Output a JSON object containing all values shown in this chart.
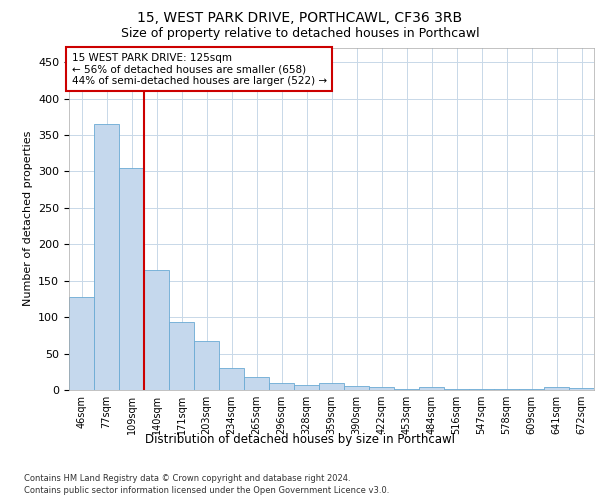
{
  "title_line1": "15, WEST PARK DRIVE, PORTHCAWL, CF36 3RB",
  "title_line2": "Size of property relative to detached houses in Porthcawl",
  "xlabel": "Distribution of detached houses by size in Porthcawl",
  "ylabel": "Number of detached properties",
  "bar_values": [
    128,
    365,
    305,
    165,
    93,
    67,
    30,
    18,
    9,
    7,
    9,
    5,
    4,
    1,
    4,
    1,
    1,
    1,
    1,
    4,
    3
  ],
  "bar_labels": [
    "46sqm",
    "77sqm",
    "109sqm",
    "140sqm",
    "171sqm",
    "203sqm",
    "234sqm",
    "265sqm",
    "296sqm",
    "328sqm",
    "359sqm",
    "390sqm",
    "422sqm",
    "453sqm",
    "484sqm",
    "516sqm",
    "547sqm",
    "578sqm",
    "609sqm",
    "641sqm",
    "672sqm"
  ],
  "bar_color": "#c5d8ed",
  "bar_edge_color": "#6aaad4",
  "vline_x_idx": 2,
  "vline_color": "#cc0000",
  "annotation_line1": "15 WEST PARK DRIVE: 125sqm",
  "annotation_line2": "← 56% of detached houses are smaller (658)",
  "annotation_line3": "44% of semi-detached houses are larger (522) →",
  "ylim": [
    0,
    470
  ],
  "yticks": [
    0,
    50,
    100,
    150,
    200,
    250,
    300,
    350,
    400,
    450
  ],
  "footer_line1": "Contains HM Land Registry data © Crown copyright and database right 2024.",
  "footer_line2": "Contains public sector information licensed under the Open Government Licence v3.0.",
  "background_color": "#ffffff",
  "grid_color": "#c8d8e8",
  "title1_fontsize": 10,
  "title2_fontsize": 9,
  "ylabel_fontsize": 8,
  "xlabel_fontsize": 8.5,
  "ytick_fontsize": 8,
  "xtick_fontsize": 7,
  "annot_fontsize": 7.5,
  "footer_fontsize": 6
}
